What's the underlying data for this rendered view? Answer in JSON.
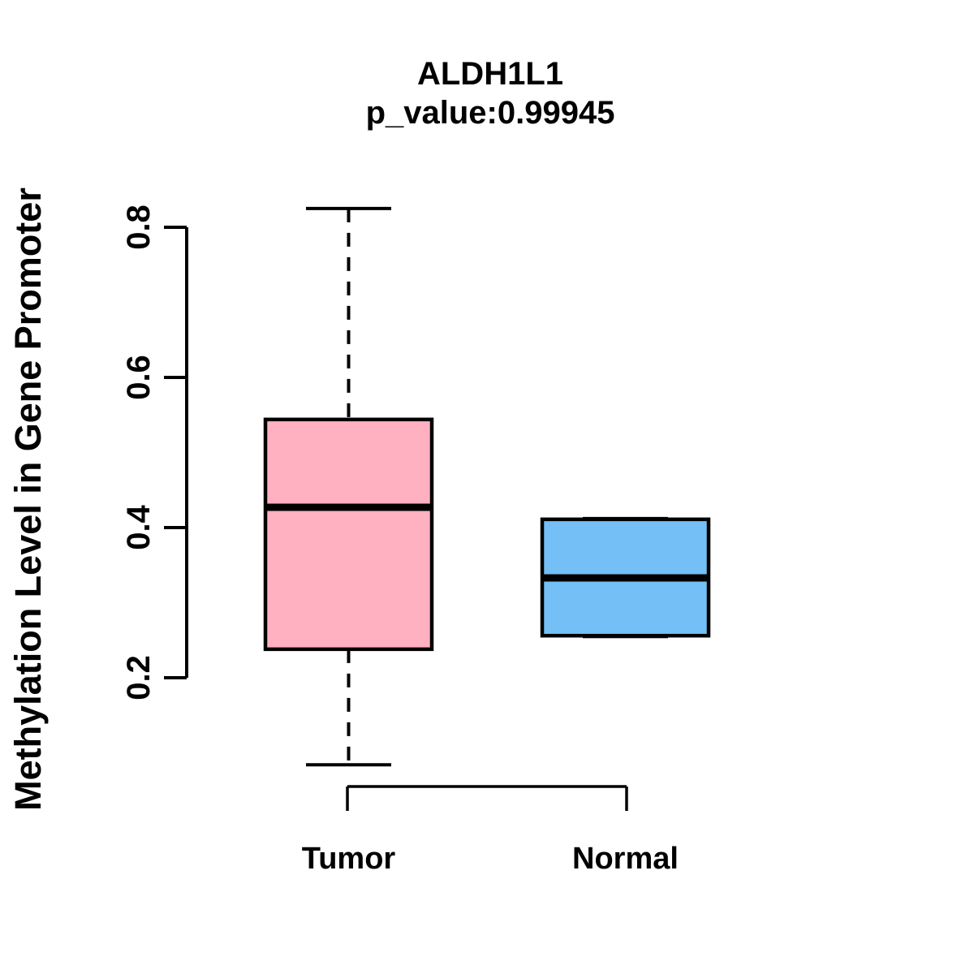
{
  "chart_data": {
    "type": "boxplot",
    "title": "ALDH1L1",
    "subtitle": "p_value:0.99945",
    "ylabel": "Methylation Level in Gene Promoter",
    "xlabel": "",
    "categories": [
      "Tumor",
      "Normal"
    ],
    "y_ticks": [
      0.2,
      0.4,
      0.6,
      0.8
    ],
    "y_tick_labels": [
      "0.2",
      "0.4",
      "0.6",
      "0.8"
    ],
    "ylim": [
      0.03,
      0.88
    ],
    "grid": false,
    "legend": "none",
    "series": [
      {
        "name": "Tumor",
        "color": "#FFB0C1",
        "whisker_low": 0.084,
        "q1": 0.238,
        "median": 0.427,
        "q3": 0.544,
        "whisker_high": 0.825
      },
      {
        "name": "Normal",
        "color": "#73BFF6",
        "whisker_low": 0.256,
        "q1": 0.256,
        "median": 0.333,
        "q3": 0.411,
        "whisker_high": 0.411
      }
    ],
    "colors": {
      "stroke": "#000000",
      "background": "#FFFFFF"
    }
  }
}
